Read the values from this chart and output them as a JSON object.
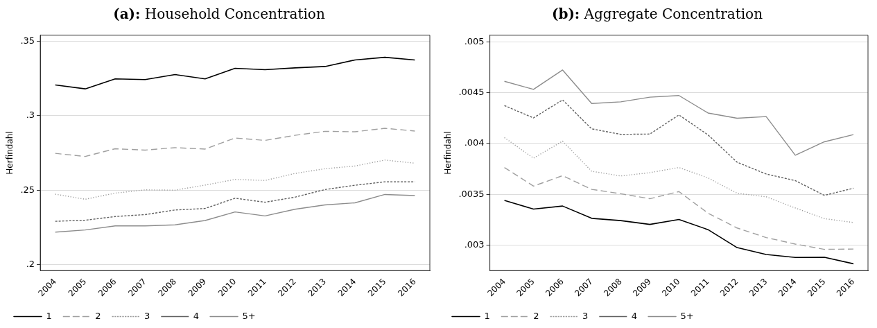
{
  "chart_data": [
    {
      "type": "line",
      "title": "(a): Household Concentration",
      "ylabel": "Herfindahl",
      "categories": [
        "2004",
        "2005",
        "2006",
        "2007",
        "2008",
        "2009",
        "2010",
        "2011",
        "2012",
        "2013",
        "2014",
        "2015",
        "2016"
      ],
      "series": [
        {
          "name": "1",
          "color": "#000000",
          "line_style": "solid",
          "values": [
            0.3206,
            0.318,
            0.3247,
            0.3242,
            0.3276,
            0.3247,
            0.3318,
            0.3309,
            0.3321,
            0.333,
            0.3374,
            0.3392,
            0.3374
          ]
        },
        {
          "name": "2",
          "color": "#a0a0a0",
          "line_style": "dashed",
          "values": [
            0.2747,
            0.2726,
            0.2778,
            0.2769,
            0.2785,
            0.2776,
            0.285,
            0.2834,
            0.2868,
            0.2895,
            0.2892,
            0.2915,
            0.2897
          ]
        },
        {
          "name": "3",
          "color": "#9a9a9a",
          "line_style": "dotted",
          "values": [
            0.2473,
            0.2439,
            0.248,
            0.2502,
            0.25,
            0.2534,
            0.2572,
            0.2565,
            0.2612,
            0.2644,
            0.2662,
            0.2702,
            0.2681
          ]
        },
        {
          "name": "4",
          "color": "#606060",
          "line_style": "dashed",
          "values": [
            0.2291,
            0.2298,
            0.2323,
            0.2336,
            0.2367,
            0.2377,
            0.2446,
            0.2419,
            0.2453,
            0.2504,
            0.2533,
            0.2556,
            0.2556
          ]
        },
        {
          "name": "5+",
          "color": "#8c8c8c",
          "line_style": "solid",
          "values": [
            0.2218,
            0.2233,
            0.226,
            0.226,
            0.2267,
            0.2296,
            0.2354,
            0.2327,
            0.2372,
            0.2401,
            0.2415,
            0.2471,
            0.2464
          ]
        }
      ],
      "ylim": [
        0.196,
        0.354
      ],
      "yticks": [
        {
          "value": 0.2,
          "label": ".2"
        },
        {
          "value": 0.25,
          "label": ".25"
        },
        {
          "value": 0.3,
          "label": ".3"
        },
        {
          "value": 0.35,
          "label": ".35"
        }
      ],
      "grid": "y",
      "legend": "bottom",
      "marker": "none"
    },
    {
      "type": "line",
      "title": "(b): Aggregate Concentration",
      "ylabel": "Herfindahl",
      "categories": [
        "2004",
        "2005",
        "2006",
        "2007",
        "2008",
        "2009",
        "2010",
        "2011",
        "2012",
        "2013",
        "2014",
        "2015",
        "2016"
      ],
      "series": [
        {
          "name": "1",
          "color": "#000000",
          "line_style": "solid",
          "values": [
            0.003441,
            0.003355,
            0.003385,
            0.003264,
            0.003242,
            0.003204,
            0.003253,
            0.003153,
            0.002976,
            0.002908,
            0.002879,
            0.002881,
            0.002817
          ]
        },
        {
          "name": "2",
          "color": "#a0a0a0",
          "line_style": "dashed",
          "values": [
            0.003764,
            0.003581,
            0.003684,
            0.003549,
            0.003506,
            0.003457,
            0.003527,
            0.003315,
            0.003169,
            0.003075,
            0.003011,
            0.002959,
            0.002962
          ]
        },
        {
          "name": "3",
          "color": "#9a9a9a",
          "line_style": "dotted",
          "values": [
            0.004058,
            0.003856,
            0.004023,
            0.003727,
            0.003681,
            0.003713,
            0.003764,
            0.003662,
            0.003511,
            0.003476,
            0.003366,
            0.003261,
            0.003223
          ]
        },
        {
          "name": "4",
          "color": "#606060",
          "line_style": "dashed",
          "values": [
            0.004373,
            0.004252,
            0.004429,
            0.004144,
            0.00409,
            0.004093,
            0.004281,
            0.004085,
            0.003816,
            0.0037,
            0.003635,
            0.00349,
            0.00356
          ]
        },
        {
          "name": "5+",
          "color": "#8c8c8c",
          "line_style": "solid",
          "values": [
            0.004612,
            0.004532,
            0.004723,
            0.004394,
            0.00441,
            0.004456,
            0.004472,
            0.0043,
            0.004249,
            0.004265,
            0.003885,
            0.004017,
            0.004087
          ]
        }
      ],
      "ylim": [
        0.00275,
        0.005065
      ],
      "yticks": [
        {
          "value": 0.003,
          "label": ".003"
        },
        {
          "value": 0.0035,
          "label": ".0035"
        },
        {
          "value": 0.004,
          "label": ".004"
        },
        {
          "value": 0.0045,
          "label": ".0045"
        },
        {
          "value": 0.005,
          "label": ".005"
        }
      ],
      "grid": "y",
      "legend": "bottom",
      "marker": "none"
    }
  ]
}
